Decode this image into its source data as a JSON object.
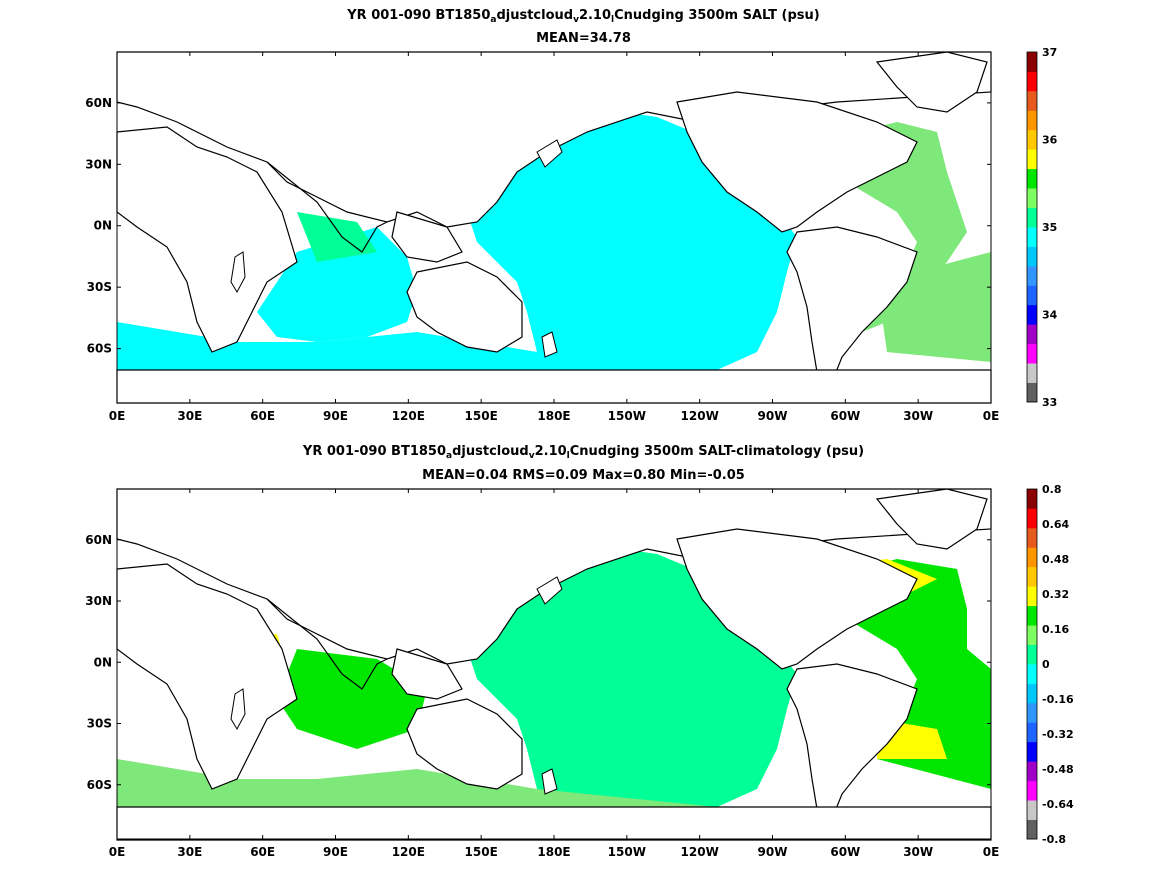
{
  "top": {
    "title_prefix": "YR 001-090 BT1850",
    "title_a": "a",
    "title_mid1": "djustcloud",
    "title_v": "v",
    "title_mid2": "2.10",
    "title_l": "l",
    "title_suffix": "Cnudging 3500m SALT (psu)",
    "stats": "MEAN=34.78",
    "colorbar_labels": [
      "37",
      "36",
      "35",
      "34",
      "33"
    ]
  },
  "bottom": {
    "title_prefix": "YR 001-090 BT1850",
    "title_a": "a",
    "title_mid1": "djustcloud",
    "title_v": "v",
    "title_mid2": "2.10",
    "title_l": "l",
    "title_suffix": "Cnudging 3500m SALT-climatology (psu)",
    "stats": "MEAN=0.04   RMS=0.09   Max=0.80   Min=-0.05",
    "colorbar_labels": [
      "0.8",
      "0.64",
      "0.48",
      "0.32",
      "0.16",
      "0",
      "-0.16",
      "-0.32",
      "-0.48",
      "-0.64",
      "-0.8"
    ]
  },
  "axes": {
    "x_labels": [
      "0E",
      "30E",
      "60E",
      "90E",
      "120E",
      "150E",
      "180E",
      "150W",
      "120W",
      "90W",
      "60W",
      "30W",
      "0E"
    ],
    "y_labels": [
      "60N",
      "30N",
      "0N",
      "30S",
      "60S"
    ]
  },
  "colors": {
    "palette": [
      "#606060",
      "#c8c8c8",
      "#ff00ff",
      "#a000c8",
      "#0000ff",
      "#1e64ff",
      "#3296ff",
      "#00c8ff",
      "#00ffff",
      "#00ff96",
      "#7fff60",
      "#00e600",
      "#ffff00",
      "#ffc800",
      "#ff9600",
      "#e65a1e",
      "#ff0000",
      "#8b0000"
    ],
    "top_fill_main": "#00ffff",
    "top_fill_atlantic": "#7fe87a",
    "bottom_fill_main": "#00ff96",
    "bottom_fill_atlantic": "#00e600",
    "anomaly_high": "#ffff00"
  }
}
